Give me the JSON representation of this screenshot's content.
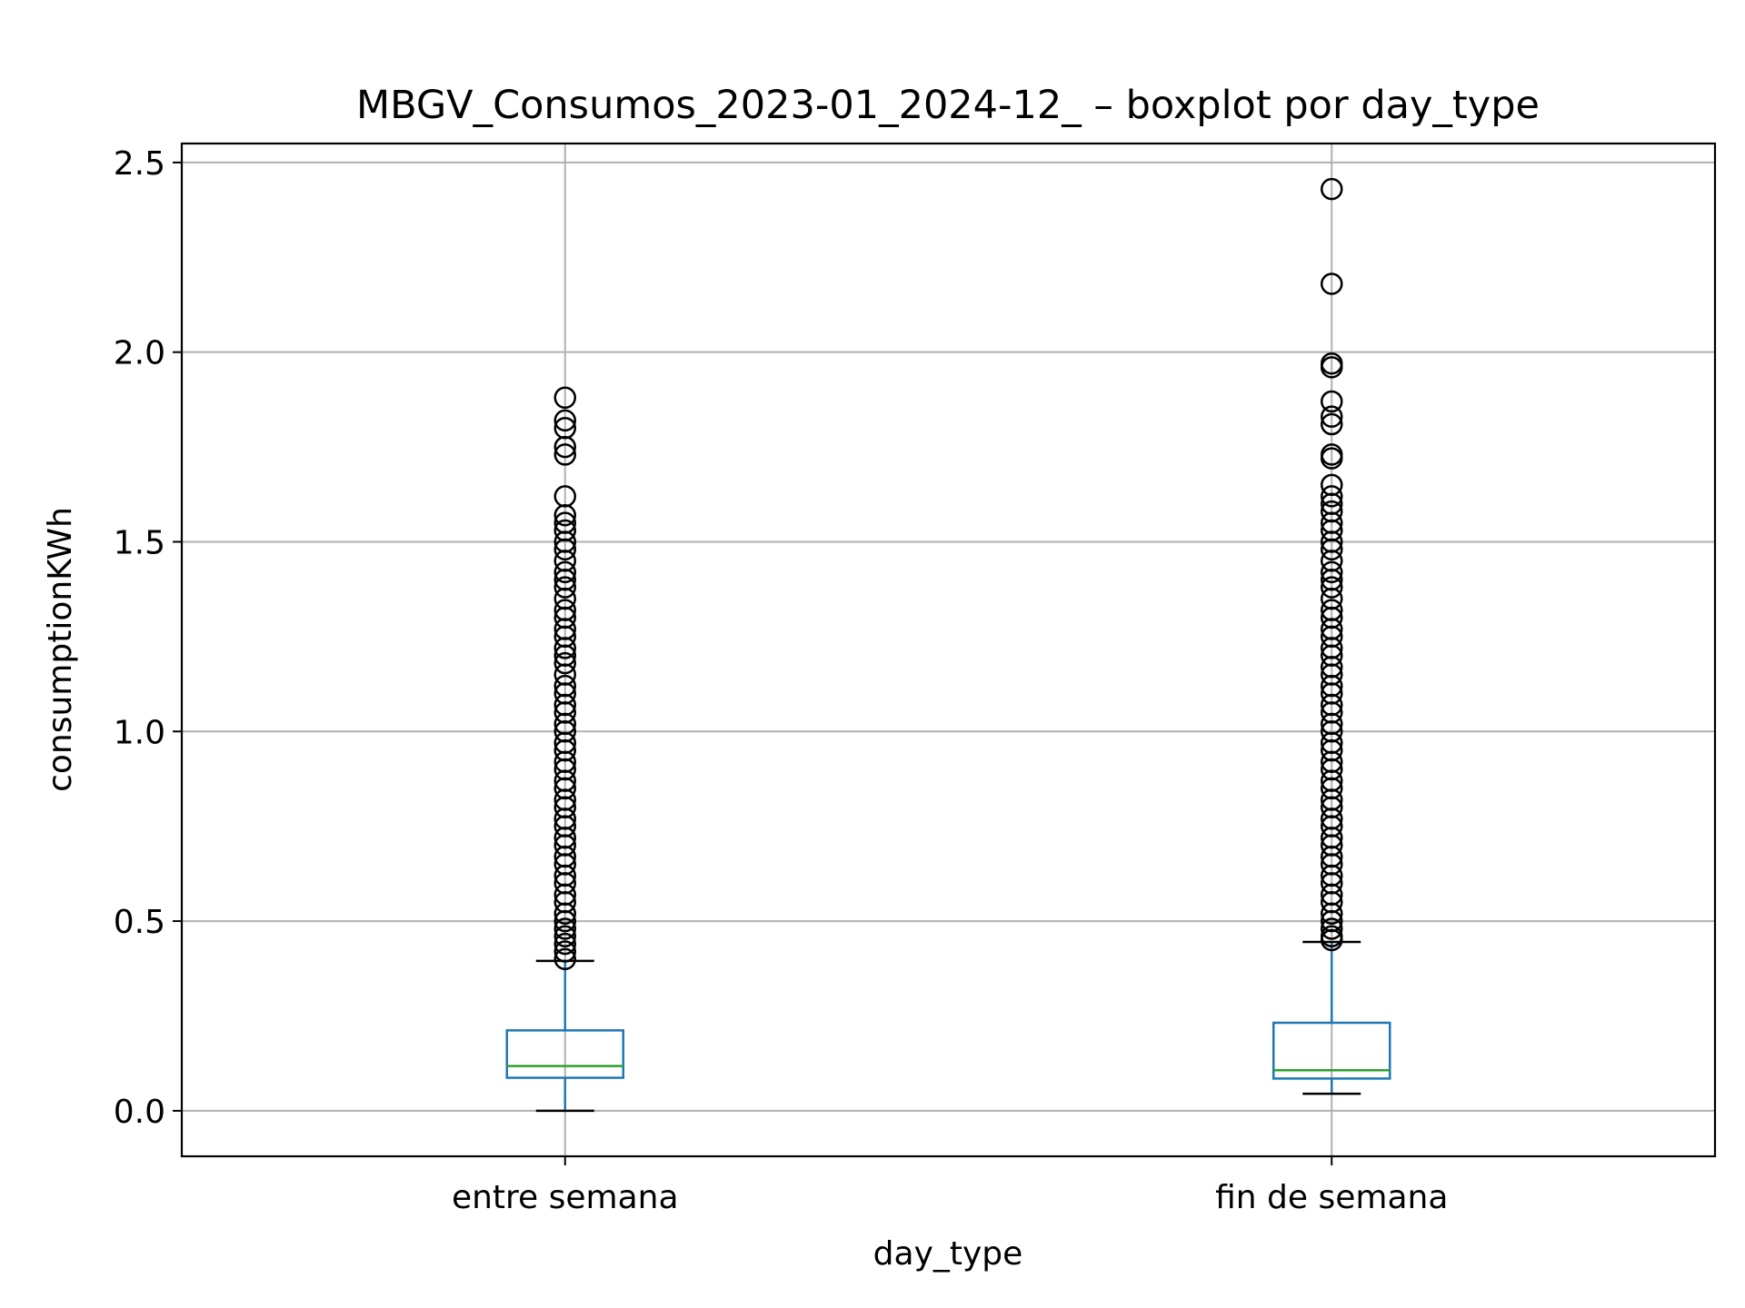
{
  "chart_data": {
    "type": "boxplot",
    "title": "MBGV_Consumos_2023-01_2024-12_ – boxplot por day_type",
    "xlabel": "day_type",
    "ylabel": "consumptionKWh",
    "ylim": [
      -0.12,
      2.55
    ],
    "yticks": [
      0.0,
      0.5,
      1.0,
      1.5,
      2.0,
      2.5
    ],
    "ytick_labels": [
      "0.0",
      "0.5",
      "1.0",
      "1.5",
      "2.0",
      "2.5"
    ],
    "grid": true,
    "categories": [
      "entre semana",
      "fin de semana"
    ],
    "boxes": [
      {
        "category": "entre semana",
        "whisker_low": 0.0,
        "q1": 0.087,
        "median": 0.118,
        "q3": 0.212,
        "whisker_high": 0.395,
        "outliers": [
          1.88,
          1.82,
          1.8,
          1.75,
          1.73,
          1.62,
          1.57,
          1.55,
          1.53,
          1.5,
          1.48,
          1.45,
          1.42,
          1.4,
          1.38,
          1.35,
          1.32,
          1.3,
          1.27,
          1.25,
          1.22,
          1.2,
          1.18,
          1.15,
          1.12,
          1.1,
          1.07,
          1.05,
          1.02,
          1.0,
          0.97,
          0.95,
          0.92,
          0.9,
          0.87,
          0.85,
          0.82,
          0.8,
          0.77,
          0.75,
          0.72,
          0.7,
          0.67,
          0.65,
          0.62,
          0.6,
          0.57,
          0.55,
          0.52,
          0.5,
          0.48,
          0.46,
          0.44,
          0.42,
          0.4
        ]
      },
      {
        "category": "fin de semana",
        "whisker_low": 0.045,
        "q1": 0.085,
        "median": 0.107,
        "q3": 0.232,
        "whisker_high": 0.445,
        "outliers": [
          2.43,
          2.18,
          1.97,
          1.96,
          1.87,
          1.83,
          1.81,
          1.73,
          1.72,
          1.65,
          1.62,
          1.6,
          1.58,
          1.55,
          1.53,
          1.5,
          1.48,
          1.45,
          1.42,
          1.4,
          1.38,
          1.35,
          1.32,
          1.3,
          1.27,
          1.25,
          1.22,
          1.2,
          1.17,
          1.15,
          1.12,
          1.1,
          1.07,
          1.05,
          1.02,
          1.0,
          0.97,
          0.95,
          0.92,
          0.9,
          0.87,
          0.85,
          0.82,
          0.8,
          0.77,
          0.75,
          0.72,
          0.7,
          0.67,
          0.65,
          0.62,
          0.6,
          0.57,
          0.55,
          0.52,
          0.5,
          0.48,
          0.46,
          0.45
        ]
      }
    ],
    "colors": {
      "box": "#1f77b4",
      "median": "#2ca02c",
      "whisker_cap": "#000000",
      "outlier": "#000000",
      "grid": "#b0b0b0",
      "axes": "#000000"
    }
  }
}
